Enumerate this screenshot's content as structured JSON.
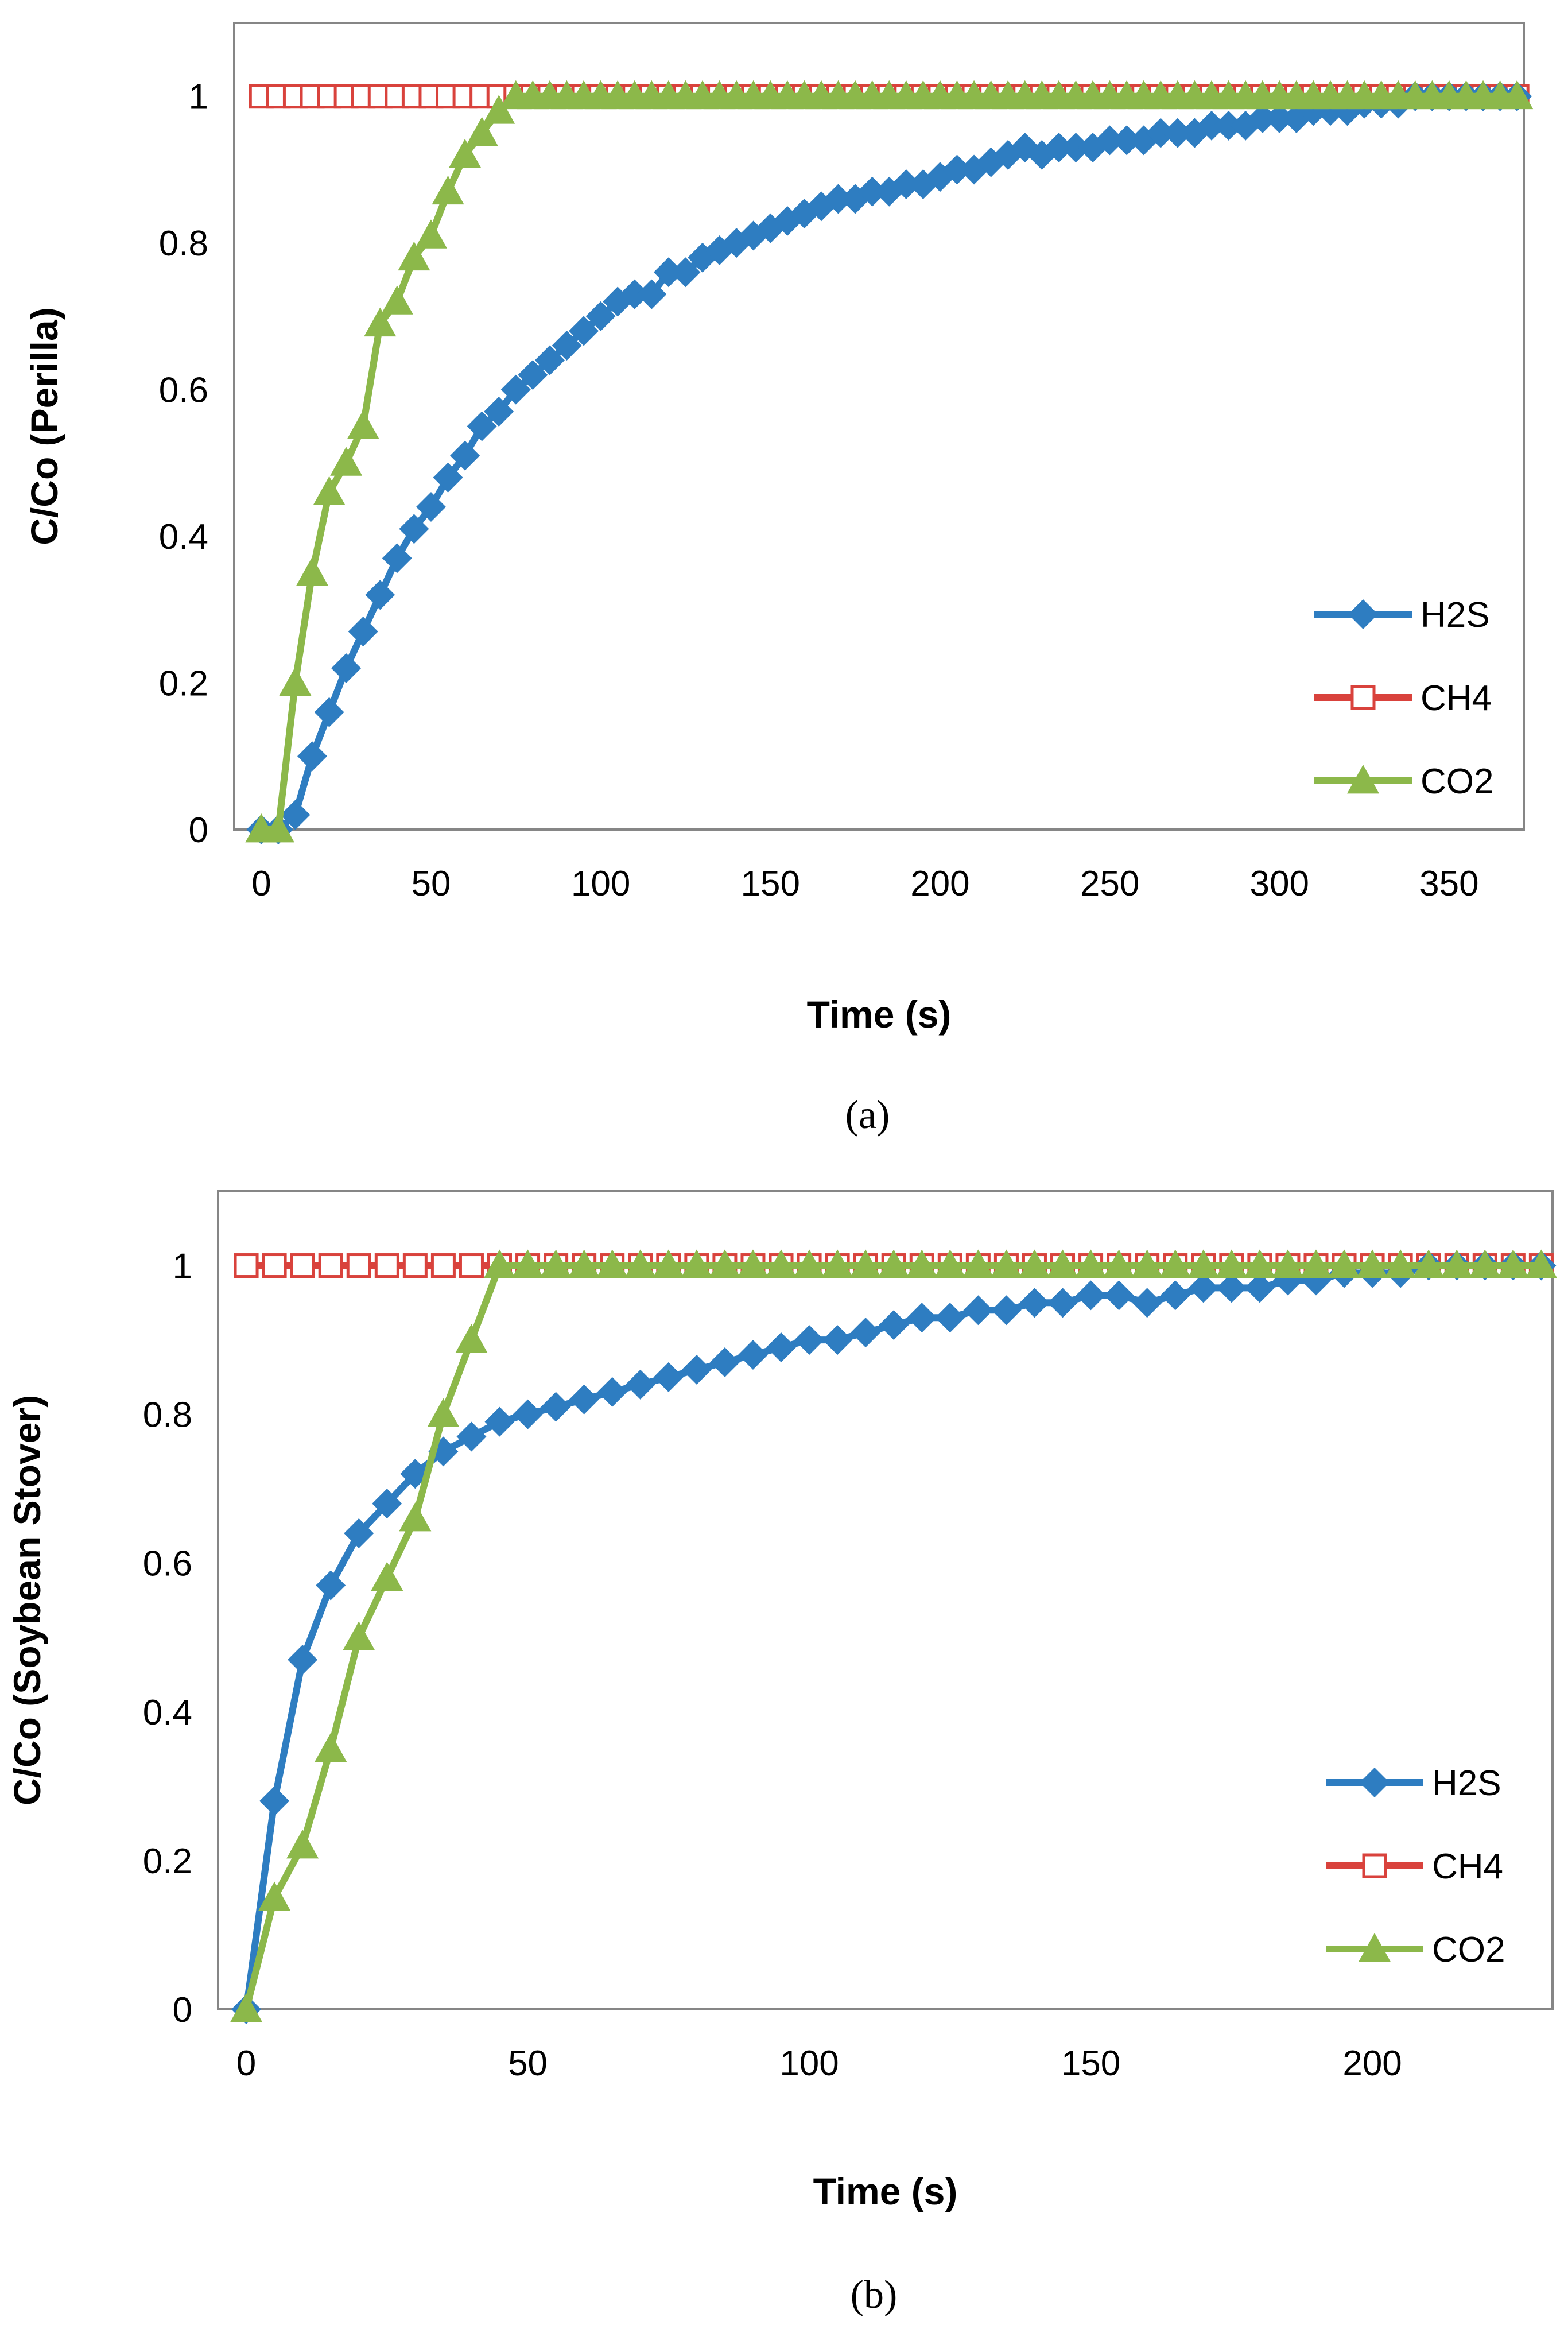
{
  "colors": {
    "H2S": "#2E7DC1",
    "CH4": "#D9423C",
    "CO2": "#8CB84A"
  },
  "chart_data": [
    {
      "type": "line",
      "panel_label": "(a)",
      "xlabel": "Time (s)",
      "ylabel": "C/Co  (Perilla)",
      "xlim": [
        -8,
        372
      ],
      "ylim": [
        0,
        1.1
      ],
      "x_ticks": [
        "0",
        "50",
        "100",
        "150",
        "200",
        "250",
        "300",
        "350"
      ],
      "y_ticks": [
        "0",
        "0.2",
        "0.4",
        "0.6",
        "0.8",
        "1"
      ],
      "legend_position": "bottom-right",
      "grid": false,
      "series": [
        {
          "name": "H2S",
          "marker": "diamond",
          "x": [
            0,
            5,
            10,
            15,
            20,
            25,
            30,
            35,
            40,
            45,
            50,
            55,
            60,
            65,
            70,
            75,
            80,
            85,
            90,
            95,
            100,
            105,
            110,
            115,
            120,
            125,
            130,
            135,
            140,
            145,
            150,
            155,
            160,
            165,
            170,
            175,
            180,
            185,
            190,
            195,
            200,
            205,
            210,
            215,
            220,
            225,
            230,
            235,
            240,
            245,
            250,
            255,
            260,
            265,
            270,
            275,
            280,
            285,
            290,
            295,
            300,
            305,
            310,
            315,
            320,
            325,
            330,
            335,
            340,
            345,
            350,
            355,
            360,
            365,
            370
          ],
          "values": [
            0,
            0,
            0.02,
            0.1,
            0.16,
            0.22,
            0.27,
            0.32,
            0.37,
            0.41,
            0.44,
            0.48,
            0.51,
            0.55,
            0.57,
            0.6,
            0.62,
            0.64,
            0.66,
            0.68,
            0.7,
            0.72,
            0.73,
            0.73,
            0.76,
            0.76,
            0.78,
            0.79,
            0.8,
            0.81,
            0.82,
            0.83,
            0.84,
            0.85,
            0.86,
            0.86,
            0.87,
            0.87,
            0.88,
            0.88,
            0.89,
            0.9,
            0.9,
            0.91,
            0.92,
            0.93,
            0.92,
            0.93,
            0.93,
            0.93,
            0.94,
            0.94,
            0.94,
            0.95,
            0.95,
            0.95,
            0.96,
            0.96,
            0.96,
            0.97,
            0.97,
            0.97,
            0.98,
            0.98,
            0.98,
            0.99,
            0.99,
            0.99,
            1,
            1,
            1,
            1,
            1,
            1,
            1
          ]
        },
        {
          "name": "CH4",
          "marker": "open-square",
          "x": [
            0,
            5,
            10,
            15,
            20,
            25,
            30,
            35,
            40,
            45,
            50,
            55,
            60,
            65,
            70,
            75,
            80,
            85,
            90,
            95,
            100,
            105,
            110,
            115,
            120,
            125,
            130,
            135,
            140,
            145,
            150,
            155,
            160,
            165,
            170,
            175,
            180,
            185,
            190,
            195,
            200,
            205,
            210,
            215,
            220,
            225,
            230,
            235,
            240,
            245,
            250,
            255,
            260,
            265,
            270,
            275,
            280,
            285,
            290,
            295,
            300,
            305,
            310,
            315,
            320,
            325,
            330,
            335,
            340,
            345,
            350,
            355,
            360,
            365,
            370
          ],
          "values": [
            1,
            1,
            1,
            1,
            1,
            1,
            1,
            1,
            1,
            1,
            1,
            1,
            1,
            1,
            1,
            1,
            1,
            1,
            1,
            1,
            1,
            1,
            1,
            1,
            1,
            1,
            1,
            1,
            1,
            1,
            1,
            1,
            1,
            1,
            1,
            1,
            1,
            1,
            1,
            1,
            1,
            1,
            1,
            1,
            1,
            1,
            1,
            1,
            1,
            1,
            1,
            1,
            1,
            1,
            1,
            1,
            1,
            1,
            1,
            1,
            1,
            1,
            1,
            1,
            1,
            1,
            1,
            1,
            1,
            1,
            1,
            1,
            1,
            1,
            1
          ]
        },
        {
          "name": "CO2",
          "marker": "triangle",
          "x": [
            0,
            5,
            10,
            15,
            20,
            25,
            30,
            35,
            40,
            45,
            50,
            55,
            60,
            65,
            70,
            75,
            80,
            85,
            90,
            95,
            100,
            105,
            110,
            115,
            120,
            125,
            130,
            135,
            140,
            145,
            150,
            155,
            160,
            165,
            170,
            175,
            180,
            185,
            190,
            195,
            200,
            205,
            210,
            215,
            220,
            225,
            230,
            235,
            240,
            245,
            250,
            255,
            260,
            265,
            270,
            275,
            280,
            285,
            290,
            295,
            300,
            305,
            310,
            315,
            320,
            325,
            330,
            335,
            340,
            345,
            350,
            355,
            360,
            365,
            370
          ],
          "values": [
            0,
            0,
            0.2,
            0.35,
            0.46,
            0.5,
            0.55,
            0.69,
            0.72,
            0.78,
            0.81,
            0.87,
            0.92,
            0.95,
            0.98,
            1,
            1,
            1,
            1,
            1,
            1,
            1,
            1,
            1,
            1,
            1,
            1,
            1,
            1,
            1,
            1,
            1,
            1,
            1,
            1,
            1,
            1,
            1,
            1,
            1,
            1,
            1,
            1,
            1,
            1,
            1,
            1,
            1,
            1,
            1,
            1,
            1,
            1,
            1,
            1,
            1,
            1,
            1,
            1,
            1,
            1,
            1,
            1,
            1,
            1,
            1,
            1,
            1,
            1,
            1,
            1,
            1,
            1,
            1,
            1
          ]
        }
      ]
    },
    {
      "type": "line",
      "panel_label": "(b)",
      "xlabel": "Time (s)",
      "ylabel": "C/Co  (Soybean Stover)",
      "xlim": [
        -5,
        232
      ],
      "ylim": [
        0,
        1.1
      ],
      "x_ticks": [
        "0",
        "50",
        "100",
        "150",
        "200"
      ],
      "y_ticks": [
        "0",
        "0.2",
        "0.4",
        "0.6",
        "0.8",
        "1"
      ],
      "legend_position": "bottom-right",
      "grid": false,
      "series": [
        {
          "name": "H2S",
          "marker": "diamond",
          "x": [
            0,
            5,
            10,
            15,
            20,
            25,
            30,
            35,
            40,
            45,
            50,
            55,
            60,
            65,
            70,
            75,
            80,
            85,
            90,
            95,
            100,
            105,
            110,
            115,
            120,
            125,
            130,
            135,
            140,
            145,
            150,
            155,
            160,
            165,
            170,
            175,
            180,
            185,
            190,
            195,
            200,
            205,
            210,
            215,
            220,
            225,
            230
          ],
          "values": [
            0,
            0.28,
            0.47,
            0.57,
            0.64,
            0.68,
            0.72,
            0.75,
            0.77,
            0.79,
            0.8,
            0.81,
            0.82,
            0.83,
            0.84,
            0.85,
            0.86,
            0.87,
            0.88,
            0.89,
            0.9,
            0.9,
            0.91,
            0.92,
            0.93,
            0.93,
            0.94,
            0.94,
            0.95,
            0.95,
            0.96,
            0.96,
            0.95,
            0.96,
            0.97,
            0.97,
            0.97,
            0.98,
            0.98,
            0.99,
            0.99,
            0.99,
            1,
            1,
            1,
            1,
            1
          ]
        },
        {
          "name": "CH4",
          "marker": "open-square",
          "x": [
            0,
            5,
            10,
            15,
            20,
            25,
            30,
            35,
            40,
            45,
            50,
            55,
            60,
            65,
            70,
            75,
            80,
            85,
            90,
            95,
            100,
            105,
            110,
            115,
            120,
            125,
            130,
            135,
            140,
            145,
            150,
            155,
            160,
            165,
            170,
            175,
            180,
            185,
            190,
            195,
            200,
            205,
            210,
            215,
            220,
            225,
            230
          ],
          "values": [
            1,
            1,
            1,
            1,
            1,
            1,
            1,
            1,
            1,
            1,
            1,
            1,
            1,
            1,
            1,
            1,
            1,
            1,
            1,
            1,
            1,
            1,
            1,
            1,
            1,
            1,
            1,
            1,
            1,
            1,
            1,
            1,
            1,
            1,
            1,
            1,
            1,
            1,
            1,
            1,
            1,
            1,
            1,
            1,
            1,
            1,
            1
          ]
        },
        {
          "name": "CO2",
          "marker": "triangle",
          "x": [
            0,
            5,
            10,
            15,
            20,
            25,
            30,
            35,
            40,
            45,
            50,
            55,
            60,
            65,
            70,
            75,
            80,
            85,
            90,
            95,
            100,
            105,
            110,
            115,
            120,
            125,
            130,
            135,
            140,
            145,
            150,
            155,
            160,
            165,
            170,
            175,
            180,
            185,
            190,
            195,
            200,
            205,
            210,
            215,
            220,
            225,
            230
          ],
          "values": [
            0,
            0.15,
            0.22,
            0.35,
            0.5,
            0.58,
            0.66,
            0.8,
            0.9,
            1,
            1,
            1,
            1,
            1,
            1,
            1,
            1,
            1,
            1,
            1,
            1,
            1,
            1,
            1,
            1,
            1,
            1,
            1,
            1,
            1,
            1,
            1,
            1,
            1,
            1,
            1,
            1,
            1,
            1,
            1,
            1,
            1,
            1,
            1,
            1,
            1,
            1
          ]
        }
      ]
    }
  ]
}
